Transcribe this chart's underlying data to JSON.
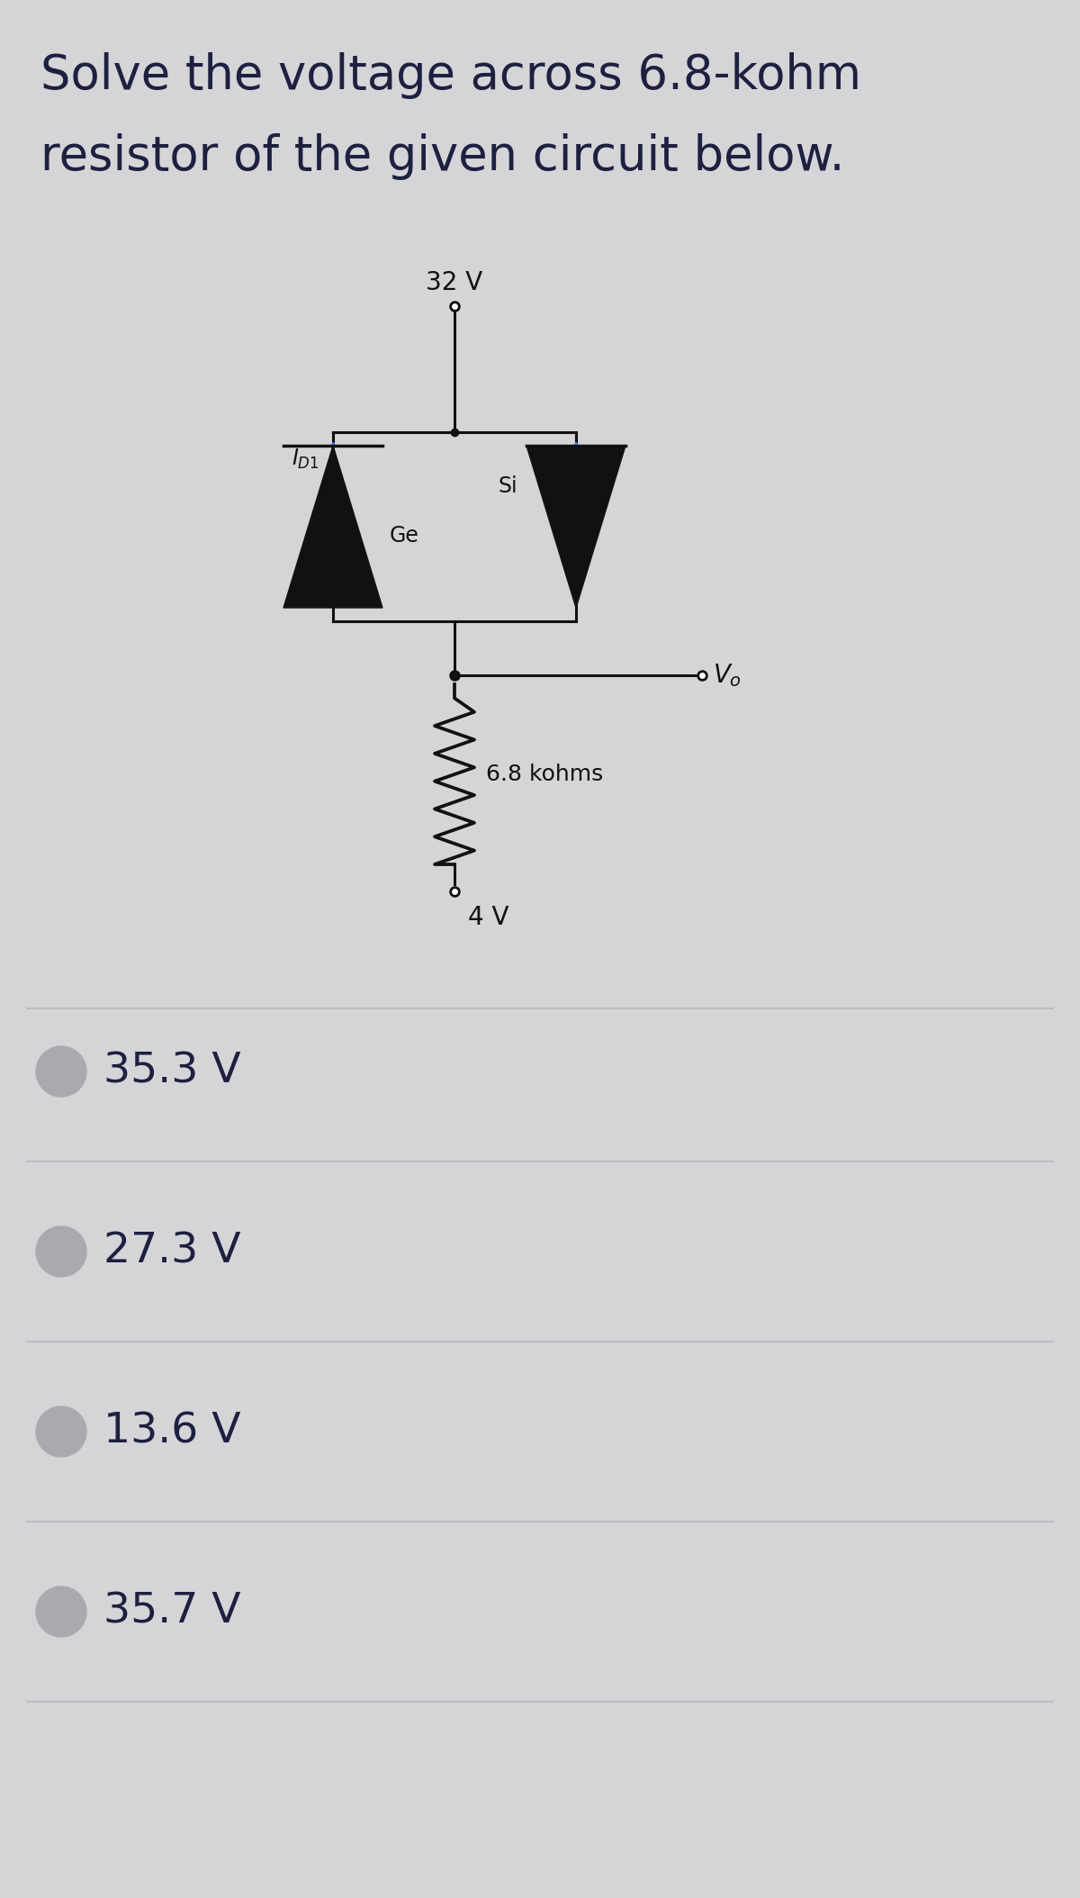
{
  "title_line1": "Solve the voltage across 6.8-kohm",
  "title_line2": "resistor of the given circuit below.",
  "bg_color": "#d5d5d8",
  "text_color": "#1e2040",
  "circuit_color": "#111111",
  "arrow_color": "#4488ff",
  "choices": [
    "35.3 V",
    "27.3 V",
    "13.6 V",
    "35.7 V"
  ],
  "divider_color": "#b8b8bc",
  "circle_color": "#aaaaae",
  "title_fontsize": 38,
  "choice_fontsize": 34,
  "lw": 2.2
}
